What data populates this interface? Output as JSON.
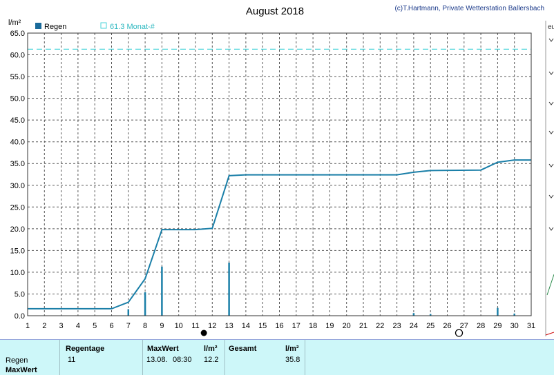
{
  "header": {
    "title": "August 2018",
    "credit": "(c)T.Hartmann, Private Wetterstation Ballersbach",
    "unit": "l/m²",
    "legend_rain": "Regen",
    "legend_month": "61.3 Monat-#",
    "side_fragment": "eu"
  },
  "colors": {
    "rain": "#1a7fa8",
    "month_avg": "#49d3d9",
    "grid": "#555555",
    "footer_bg": "#cdf7f9"
  },
  "chart_data": {
    "type": "line",
    "title": "August 2018",
    "ylabel": "l/m²",
    "xlim": [
      1,
      31
    ],
    "ylim": [
      0,
      65
    ],
    "x_ticks": [
      1,
      2,
      3,
      4,
      5,
      6,
      7,
      8,
      9,
      10,
      11,
      12,
      13,
      14,
      15,
      16,
      17,
      18,
      19,
      20,
      21,
      22,
      23,
      24,
      25,
      26,
      27,
      28,
      29,
      30,
      31
    ],
    "y_ticks": [
      "0.0",
      "5.0",
      "10.0",
      "15.0",
      "20.0",
      "25.0",
      "30.0",
      "35.0",
      "40.0",
      "45.0",
      "50.0",
      "55.0",
      "60.0",
      "65.0"
    ],
    "reference_line": {
      "name": "61.3 Monat-#",
      "value": 61.3
    },
    "series": [
      {
        "name": "Regen",
        "cumulative": [
          [
            1,
            1.6
          ],
          [
            6,
            1.6
          ],
          [
            7,
            3.1
          ],
          [
            8,
            8.5
          ],
          [
            9,
            19.8
          ],
          [
            11,
            19.8
          ],
          [
            12,
            20.1
          ],
          [
            13,
            32.2
          ],
          [
            14,
            32.4
          ],
          [
            23,
            32.4
          ],
          [
            24,
            33.0
          ],
          [
            25,
            33.4
          ],
          [
            28,
            33.5
          ],
          [
            29,
            35.3
          ],
          [
            30,
            35.8
          ],
          [
            31,
            35.8
          ]
        ],
        "daily": [
          [
            7,
            1.5
          ],
          [
            8,
            5.4
          ],
          [
            9,
            11.3
          ],
          [
            13,
            12.2
          ],
          [
            24,
            0.6
          ],
          [
            25,
            0.4
          ],
          [
            29,
            1.8
          ],
          [
            30,
            0.5
          ]
        ]
      }
    ],
    "markers": {
      "full_moon_day": 11.5,
      "new_moon_day": 26.7
    }
  },
  "footer": {
    "row_regen": "Regen",
    "row_maxwert": "MaxWert",
    "col_regentage": "Regentage",
    "regentage_value": "11",
    "col_maxwert": "MaxWert",
    "maxwert_date": "13.08.",
    "maxwert_time": "08:30",
    "unit1": "l/m²",
    "maxwert_value": "12.2",
    "col_gesamt": "Gesamt",
    "unit2": "l/m²",
    "gesamt_value": "35.8"
  }
}
